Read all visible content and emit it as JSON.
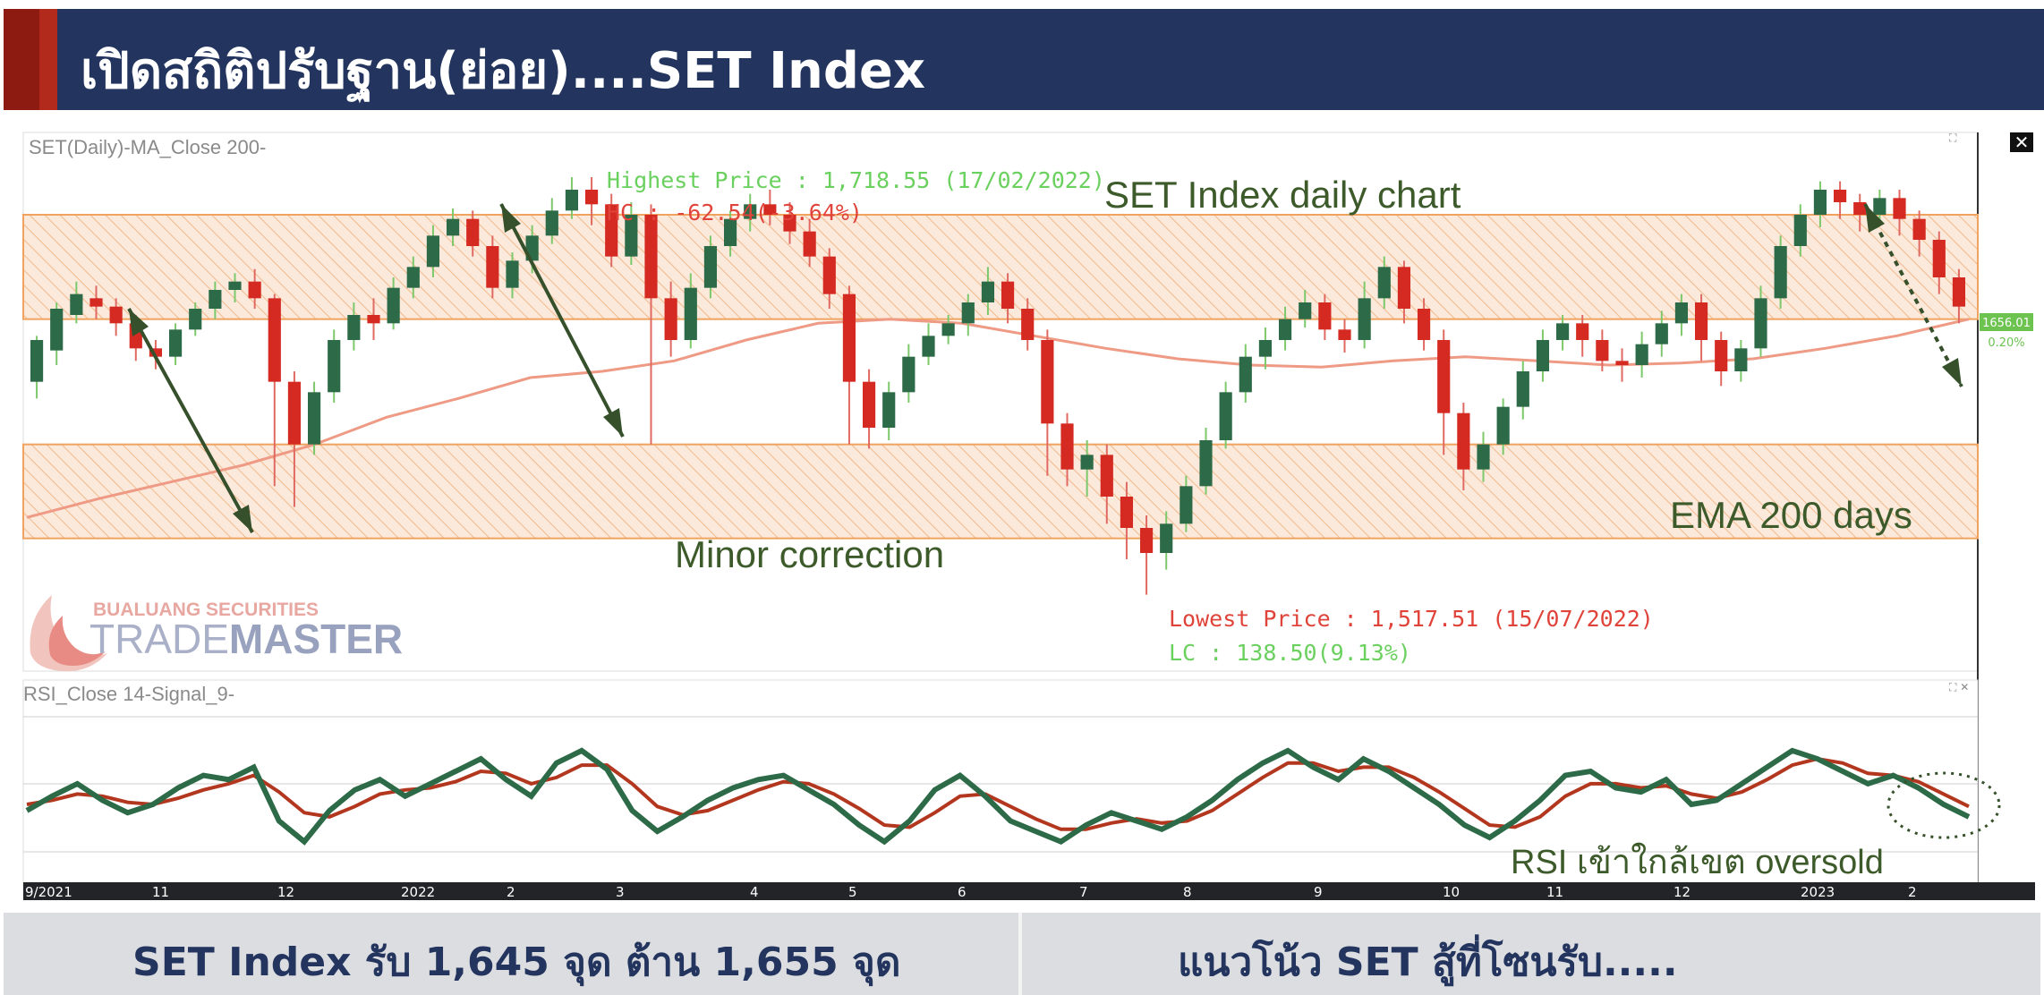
{
  "header": {
    "title": "เปิดสถิติปรับฐาน(ย่อย)....SET Index"
  },
  "chart_data": {
    "type": "candlestick",
    "title": "SET Index daily chart",
    "price_panel_label": "SET(Daily)-MA_Close 200-",
    "rsi_panel_label": "RSI_Close 14-Signal_9-",
    "x_ticks": [
      "9/2021",
      "11",
      "12",
      "2022",
      "2",
      "3",
      "4",
      "5",
      "6",
      "7",
      "8",
      "9",
      "10",
      "11",
      "12",
      "2023",
      "2"
    ],
    "ylim": [
      1490,
      1730
    ],
    "zones": [
      {
        "name": "upper-zone",
        "from": 1650,
        "to": 1700
      },
      {
        "name": "lower-zone",
        "from": 1545,
        "to": 1590
      }
    ],
    "ema_label": "EMA 200 days",
    "ema_values": [
      1555,
      1564,
      1572,
      1580,
      1590,
      1603,
      1612,
      1622,
      1625,
      1630,
      1640,
      1648,
      1650,
      1648,
      1642,
      1636,
      1631,
      1628,
      1627,
      1630,
      1632,
      1630,
      1628,
      1629,
      1631,
      1636,
      1642,
      1650
    ],
    "candles": [
      [
        1620,
        1640,
        1612,
        1642
      ],
      [
        1635,
        1655,
        1628,
        1658
      ],
      [
        1652,
        1662,
        1648,
        1668
      ],
      [
        1660,
        1656,
        1650,
        1666
      ],
      [
        1656,
        1648,
        1642,
        1660
      ],
      [
        1648,
        1636,
        1630,
        1652
      ],
      [
        1636,
        1632,
        1626,
        1640
      ],
      [
        1632,
        1645,
        1628,
        1648
      ],
      [
        1645,
        1655,
        1642,
        1658
      ],
      [
        1655,
        1664,
        1650,
        1668
      ],
      [
        1664,
        1668,
        1658,
        1672
      ],
      [
        1668,
        1660,
        1655,
        1674
      ],
      [
        1660,
        1620,
        1570,
        1662
      ],
      [
        1620,
        1590,
        1560,
        1625
      ],
      [
        1590,
        1615,
        1585,
        1620
      ],
      [
        1615,
        1640,
        1610,
        1645
      ],
      [
        1640,
        1652,
        1635,
        1658
      ],
      [
        1652,
        1648,
        1640,
        1660
      ],
      [
        1648,
        1665,
        1645,
        1670
      ],
      [
        1665,
        1675,
        1660,
        1680
      ],
      [
        1675,
        1690,
        1670,
        1695
      ],
      [
        1690,
        1698,
        1685,
        1703
      ],
      [
        1698,
        1685,
        1680,
        1702
      ],
      [
        1685,
        1665,
        1660,
        1690
      ],
      [
        1665,
        1678,
        1660,
        1682
      ],
      [
        1678,
        1690,
        1672,
        1695
      ],
      [
        1690,
        1702,
        1686,
        1708
      ],
      [
        1702,
        1712,
        1698,
        1718
      ],
      [
        1712,
        1705,
        1695,
        1718
      ],
      [
        1705,
        1680,
        1675,
        1710
      ],
      [
        1680,
        1700,
        1676,
        1706
      ],
      [
        1700,
        1660,
        1590,
        1705
      ],
      [
        1660,
        1640,
        1632,
        1668
      ],
      [
        1640,
        1665,
        1636,
        1672
      ],
      [
        1665,
        1685,
        1660,
        1690
      ],
      [
        1685,
        1698,
        1680,
        1702
      ],
      [
        1698,
        1705,
        1692,
        1710
      ],
      [
        1705,
        1700,
        1695,
        1712
      ],
      [
        1700,
        1692,
        1686,
        1706
      ],
      [
        1692,
        1680,
        1675,
        1698
      ],
      [
        1680,
        1662,
        1655,
        1684
      ],
      [
        1662,
        1620,
        1590,
        1666
      ],
      [
        1620,
        1598,
        1588,
        1626
      ],
      [
        1598,
        1615,
        1592,
        1620
      ],
      [
        1615,
        1632,
        1610,
        1638
      ],
      [
        1632,
        1642,
        1628,
        1648
      ],
      [
        1642,
        1648,
        1638,
        1652
      ],
      [
        1648,
        1658,
        1642,
        1662
      ],
      [
        1658,
        1668,
        1652,
        1675
      ],
      [
        1668,
        1655,
        1648,
        1672
      ],
      [
        1655,
        1640,
        1635,
        1660
      ],
      [
        1640,
        1600,
        1575,
        1645
      ],
      [
        1600,
        1578,
        1570,
        1605
      ],
      [
        1578,
        1585,
        1565,
        1592
      ],
      [
        1585,
        1565,
        1552,
        1590
      ],
      [
        1565,
        1550,
        1535,
        1572
      ],
      [
        1550,
        1538,
        1518,
        1556
      ],
      [
        1538,
        1552,
        1530,
        1558
      ],
      [
        1552,
        1570,
        1548,
        1575
      ],
      [
        1570,
        1592,
        1566,
        1598
      ],
      [
        1592,
        1615,
        1588,
        1620
      ],
      [
        1615,
        1632,
        1610,
        1638
      ],
      [
        1632,
        1640,
        1626,
        1646
      ],
      [
        1640,
        1650,
        1635,
        1656
      ],
      [
        1650,
        1658,
        1646,
        1664
      ],
      [
        1658,
        1645,
        1640,
        1662
      ],
      [
        1645,
        1640,
        1634,
        1650
      ],
      [
        1640,
        1660,
        1636,
        1668
      ],
      [
        1660,
        1675,
        1655,
        1680
      ],
      [
        1675,
        1655,
        1648,
        1678
      ],
      [
        1655,
        1640,
        1635,
        1660
      ],
      [
        1640,
        1605,
        1585,
        1645
      ],
      [
        1605,
        1578,
        1568,
        1610
      ],
      [
        1578,
        1590,
        1572,
        1596
      ],
      [
        1590,
        1608,
        1585,
        1612
      ],
      [
        1608,
        1625,
        1602,
        1630
      ],
      [
        1625,
        1640,
        1620,
        1645
      ],
      [
        1640,
        1648,
        1635,
        1652
      ],
      [
        1648,
        1640,
        1632,
        1652
      ],
      [
        1640,
        1630,
        1625,
        1645
      ],
      [
        1630,
        1628,
        1620,
        1636
      ],
      [
        1628,
        1638,
        1622,
        1644
      ],
      [
        1638,
        1648,
        1632,
        1654
      ],
      [
        1648,
        1658,
        1642,
        1662
      ],
      [
        1658,
        1640,
        1630,
        1662
      ],
      [
        1640,
        1625,
        1618,
        1644
      ],
      [
        1625,
        1636,
        1620,
        1640
      ],
      [
        1636,
        1660,
        1632,
        1666
      ],
      [
        1660,
        1685,
        1655,
        1690
      ],
      [
        1685,
        1700,
        1680,
        1705
      ],
      [
        1700,
        1712,
        1694,
        1716
      ],
      [
        1712,
        1706,
        1698,
        1716
      ],
      [
        1706,
        1700,
        1692,
        1710
      ],
      [
        1700,
        1708,
        1695,
        1712
      ],
      [
        1708,
        1698,
        1690,
        1712
      ],
      [
        1698,
        1688,
        1680,
        1702
      ],
      [
        1688,
        1670,
        1662,
        1692
      ],
      [
        1670,
        1656,
        1648,
        1674
      ]
    ],
    "annotations": {
      "highest": "Highest Price : 1,718.55 (17/02/2022)",
      "hc": "HC : -62.54(-3.64%)",
      "lowest": "Lowest Price : 1,517.51 (15/07/2022)",
      "lc": "LC : 138.50(9.13%)",
      "minor_correction": "Minor correction",
      "rsi_note": "RSI เข้าใกล้เขต oversold"
    },
    "last_price": {
      "value": "1656.01",
      "change": "0.20%"
    },
    "rsi_values": [
      45,
      52,
      58,
      50,
      44,
      48,
      56,
      62,
      60,
      66,
      40,
      30,
      45,
      55,
      60,
      52,
      58,
      64,
      70,
      60,
      52,
      68,
      74,
      65,
      45,
      35,
      42,
      50,
      56,
      60,
      62,
      55,
      48,
      38,
      30,
      40,
      55,
      62,
      52,
      40,
      35,
      30,
      38,
      44,
      40,
      36,
      42,
      50,
      60,
      68,
      74,
      66,
      60,
      70,
      64,
      56,
      48,
      38,
      32,
      40,
      50,
      62,
      64,
      56,
      54,
      60,
      48,
      50,
      58,
      66,
      74,
      70,
      64,
      58,
      62,
      56,
      48,
      42
    ],
    "rsi_signal": [
      48,
      50,
      53,
      52,
      49,
      48,
      51,
      55,
      58,
      62,
      54,
      44,
      42,
      47,
      53,
      55,
      56,
      59,
      64,
      63,
      58,
      61,
      67,
      67,
      58,
      47,
      43,
      45,
      50,
      55,
      59,
      58,
      53,
      46,
      38,
      37,
      44,
      52,
      53,
      47,
      41,
      36,
      36,
      39,
      41,
      39,
      40,
      45,
      53,
      61,
      68,
      68,
      64,
      66,
      66,
      61,
      54,
      46,
      38,
      37,
      42,
      52,
      58,
      58,
      56,
      57,
      53,
      51,
      54,
      60,
      67,
      70,
      68,
      63,
      62,
      59,
      53,
      47
    ]
  },
  "brand": {
    "line1": "BUALUANG SECURITIES",
    "trade": "TRADE",
    "master": "MASTER"
  },
  "footer": {
    "left": "SET Index รับ 1,645 จุด ต้าน 1,655 จุด",
    "right": "แนวโน้ว SET สู้ที่โซนรับ....."
  }
}
